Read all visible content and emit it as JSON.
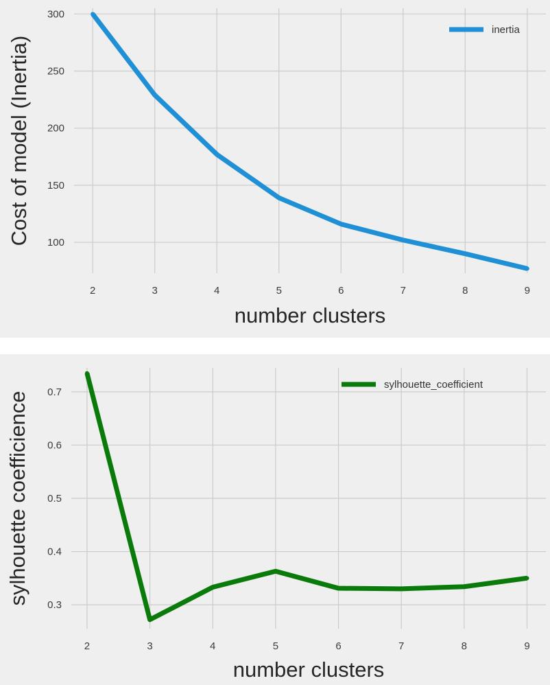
{
  "chart_data": [
    {
      "type": "line",
      "x": [
        2,
        3,
        4,
        5,
        6,
        7,
        8,
        9
      ],
      "xlabel": "number clusters",
      "ylabel": "Cost of model (Inertia)",
      "xticks": [
        "2",
        "3",
        "4",
        "5",
        "6",
        "7",
        "8",
        "9"
      ],
      "yticks": [
        "100",
        "150",
        "200",
        "250",
        "300"
      ],
      "ylim": [
        73,
        305
      ],
      "xlim": [
        1.7,
        9.3
      ],
      "grid": true,
      "legend_position": "top-right",
      "series": [
        {
          "name": "inertia",
          "color": "#1f8fd6",
          "values": [
            300,
            229,
            177,
            139,
            116,
            102,
            90,
            77
          ]
        }
      ]
    },
    {
      "type": "line",
      "x": [
        2,
        3,
        4,
        5,
        6,
        7,
        8,
        9
      ],
      "xlabel": "number clusters",
      "ylabel": "sylhouette coefficience",
      "xticks": [
        "2",
        "3",
        "4",
        "5",
        "6",
        "7",
        "8",
        "9"
      ],
      "yticks": [
        "0.3",
        "0.4",
        "0.5",
        "0.6",
        "0.7"
      ],
      "ylim": [
        0.255,
        0.745
      ],
      "xlim": [
        1.75,
        9.3
      ],
      "grid": true,
      "legend_position": "top-right",
      "series": [
        {
          "name": "sylhouette_coefficient",
          "color": "#0a7a0a",
          "values": [
            0.735,
            0.272,
            0.333,
            0.363,
            0.331,
            0.33,
            0.334,
            0.35
          ]
        }
      ]
    }
  ]
}
